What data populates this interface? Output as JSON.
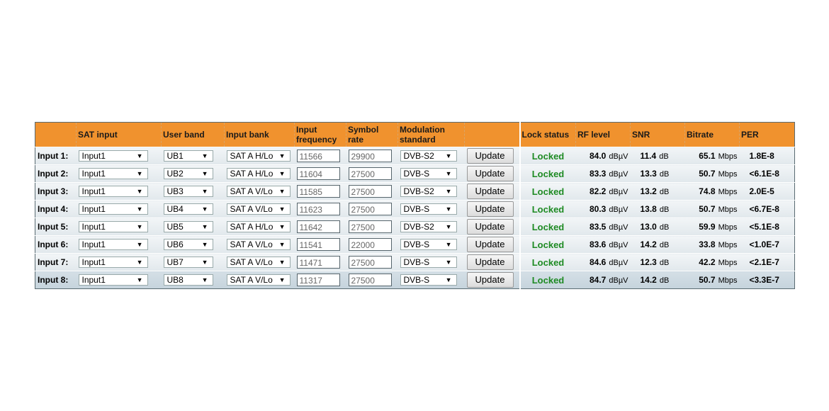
{
  "headers": [
    "",
    "SAT input",
    "User band",
    "Input bank",
    "Input frequency",
    "Symbol rate",
    "Modulation standard",
    "",
    "Lock status",
    "RF level",
    "SNR",
    "Bitrate",
    "PER"
  ],
  "colors": {
    "header": "#f0922e",
    "locked": "#1d8a22"
  },
  "update_label": "Update",
  "units": {
    "rf": "dBµV",
    "snr": "dB",
    "bitrate": "Mbps"
  },
  "rows": [
    {
      "label": "Input 1:",
      "sat": "Input1",
      "ub": "UB1",
      "bank": "SAT A H/Lo",
      "freq": "11566",
      "sr": "29900",
      "mod": "DVB-S2",
      "lock": "Locked",
      "rf": "84.0",
      "snr": "11.4",
      "br": "65.1",
      "per": "1.8E-8"
    },
    {
      "label": "Input 2:",
      "sat": "Input1",
      "ub": "UB2",
      "bank": "SAT A H/Lo",
      "freq": "11604",
      "sr": "27500",
      "mod": "DVB-S",
      "lock": "Locked",
      "rf": "83.3",
      "snr": "13.3",
      "br": "50.7",
      "per": "<6.1E-8"
    },
    {
      "label": "Input 3:",
      "sat": "Input1",
      "ub": "UB3",
      "bank": "SAT A V/Lo",
      "freq": "11585",
      "sr": "27500",
      "mod": "DVB-S2",
      "lock": "Locked",
      "rf": "82.2",
      "snr": "13.2",
      "br": "74.8",
      "per": "2.0E-5"
    },
    {
      "label": "Input 4:",
      "sat": "Input1",
      "ub": "UB4",
      "bank": "SAT A V/Lo",
      "freq": "11623",
      "sr": "27500",
      "mod": "DVB-S",
      "lock": "Locked",
      "rf": "80.3",
      "snr": "13.8",
      "br": "50.7",
      "per": "<6.7E-8"
    },
    {
      "label": "Input 5:",
      "sat": "Input1",
      "ub": "UB5",
      "bank": "SAT A H/Lo",
      "freq": "11642",
      "sr": "27500",
      "mod": "DVB-S2",
      "lock": "Locked",
      "rf": "83.5",
      "snr": "13.0",
      "br": "59.9",
      "per": "<5.1E-8"
    },
    {
      "label": "Input 6:",
      "sat": "Input1",
      "ub": "UB6",
      "bank": "SAT A V/Lo",
      "freq": "11541",
      "sr": "22000",
      "mod": "DVB-S",
      "lock": "Locked",
      "rf": "83.6",
      "snr": "14.2",
      "br": "33.8",
      "per": "<1.0E-7"
    },
    {
      "label": "Input 7:",
      "sat": "Input1",
      "ub": "UB7",
      "bank": "SAT A V/Lo",
      "freq": "11471",
      "sr": "27500",
      "mod": "DVB-S",
      "lock": "Locked",
      "rf": "84.6",
      "snr": "12.3",
      "br": "42.2",
      "per": "<2.1E-7"
    },
    {
      "label": "Input 8:",
      "sat": "Input1",
      "ub": "UB8",
      "bank": "SAT A V/Lo",
      "freq": "11317",
      "sr": "27500",
      "mod": "DVB-S",
      "lock": "Locked",
      "rf": "84.7",
      "snr": "14.2",
      "br": "50.7",
      "per": "<3.3E-7"
    }
  ]
}
